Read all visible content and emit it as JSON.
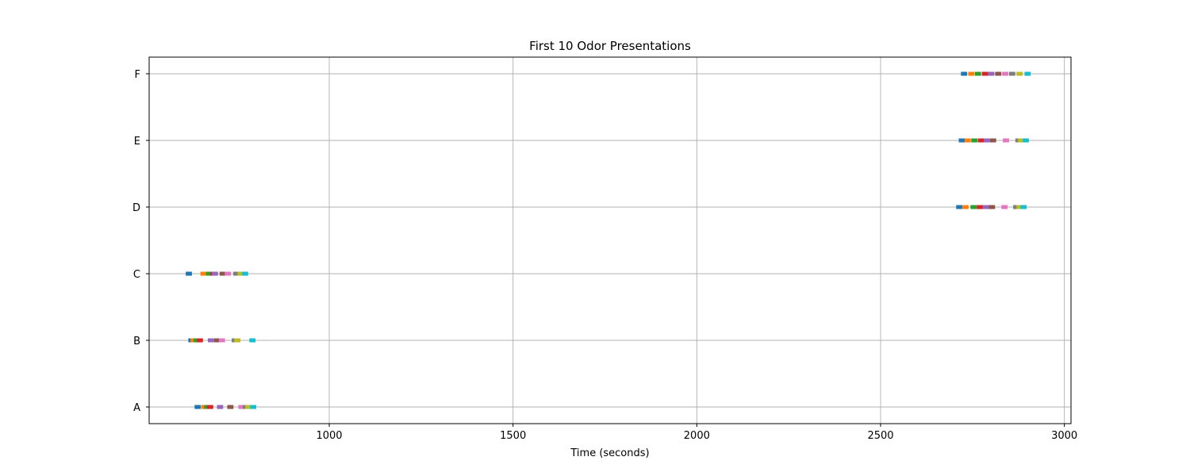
{
  "chart_data": {
    "type": "scatter",
    "title": "First 10 Odor Presentations",
    "xlabel": "Time (seconds)",
    "ylabel": "",
    "xlim": [
      510,
      3018
    ],
    "xticks": [
      1000,
      1500,
      2000,
      2500,
      3000
    ],
    "categories": [
      "A",
      "B",
      "C",
      "D",
      "E",
      "F"
    ],
    "grid": true,
    "legend": "none",
    "presentation_colors": [
      "#1f77b4",
      "#ff7f0e",
      "#2ca02c",
      "#d62728",
      "#9467bd",
      "#8c564b",
      "#e377c2",
      "#7f7f7f",
      "#bcbd22",
      "#17becf"
    ],
    "series": [
      {
        "category": "A",
        "starts": [
          639,
          657,
          665,
          673,
          700,
          728,
          758,
          770,
          777,
          790
        ],
        "duration": 6
      },
      {
        "category": "B",
        "starts": [
          622,
          628,
          636,
          645,
          675,
          692,
          705,
          740,
          747,
          788
        ],
        "duration": 6
      },
      {
        "category": "C",
        "starts": [
          615,
          655,
          670,
          682,
          686,
          707,
          721,
          744,
          756,
          768
        ],
        "duration": 6
      },
      {
        "category": "D",
        "starts": [
          2711,
          2728,
          2750,
          2767,
          2784,
          2800,
          2834,
          2866,
          2875,
          2886
        ],
        "duration": 6
      },
      {
        "category": "E",
        "starts": [
          2718,
          2734,
          2752,
          2770,
          2786,
          2803,
          2838,
          2872,
          2879,
          2892
        ],
        "duration": 6
      },
      {
        "category": "F",
        "starts": [
          2724,
          2744,
          2762,
          2781,
          2798,
          2817,
          2836,
          2855,
          2875,
          2897
        ],
        "duration": 6
      }
    ]
  }
}
